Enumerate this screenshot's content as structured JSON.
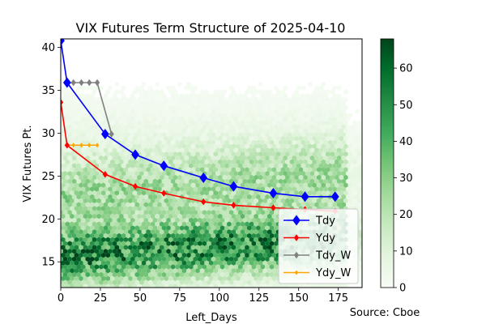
{
  "chart_data": {
    "type": "line",
    "title": "VIX Futures Term Structure of 2025-04-10",
    "xlabel": "Left_Days",
    "ylabel": "VIX Futures Pt.",
    "xlim": [
      0,
      190
    ],
    "ylim": [
      12,
      41
    ],
    "x_ticks": [
      0,
      25,
      50,
      75,
      100,
      125,
      150,
      175
    ],
    "y_ticks": [
      15,
      20,
      25,
      30,
      35,
      40
    ],
    "grid": false,
    "legend_position": "lower right",
    "source_note": "Source: Cboe",
    "background": {
      "type": "hexbin",
      "colormap": "Greens",
      "description": "historical term-structure density",
      "colorbar_range": [
        0,
        68
      ],
      "colorbar_ticks": [
        0,
        10,
        20,
        30,
        40,
        50,
        60
      ]
    },
    "series": [
      {
        "name": "Tdy",
        "color": "#0000ff",
        "marker": "diamond-large",
        "x": [
          0,
          4,
          28,
          47,
          65,
          90,
          109,
          134,
          154,
          173
        ],
        "y": [
          40.8,
          35.9,
          29.9,
          27.5,
          26.2,
          24.8,
          23.8,
          23.0,
          22.6,
          22.6
        ]
      },
      {
        "name": "Ydy",
        "color": "#ff0000",
        "marker": "diamond",
        "x": [
          0,
          4,
          28,
          47,
          65,
          90,
          109,
          134,
          154,
          173
        ],
        "y": [
          33.6,
          28.6,
          25.2,
          23.8,
          23.0,
          22.0,
          21.6,
          21.3,
          21.1,
          20.9
        ]
      },
      {
        "name": "Tdy_W",
        "color": "#808080",
        "marker": "diamond",
        "x": [
          4,
          8,
          13,
          18,
          23,
          32
        ],
        "y": [
          35.9,
          35.9,
          35.9,
          35.9,
          35.9,
          29.9
        ]
      },
      {
        "name": "Ydy_W",
        "color": "#ffa500",
        "marker": "diamond-small",
        "x": [
          4,
          8,
          13,
          18,
          23
        ],
        "y": [
          28.6,
          28.6,
          28.6,
          28.6,
          28.6
        ]
      }
    ]
  }
}
